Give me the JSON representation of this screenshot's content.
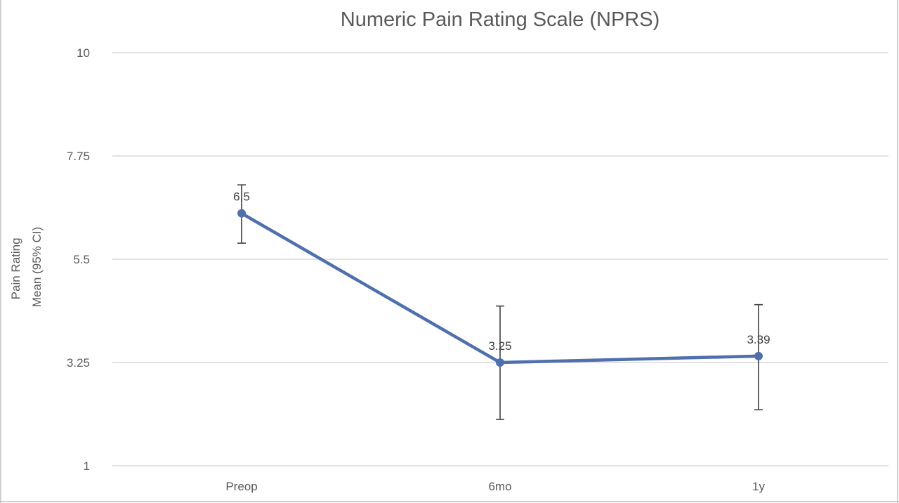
{
  "chart_data": {
    "type": "line",
    "title": "Numeric Pain Rating Scale (NPRS)",
    "ylabel_lines": [
      "Pain Rating",
      "Mean (95% CI)"
    ],
    "categories": [
      "Preop",
      "6mo",
      "1y"
    ],
    "series": [
      {
        "values": [
          6.5,
          3.25,
          3.39
        ],
        "ci_upper": [
          7.12,
          4.48,
          4.51
        ],
        "ci_lower": [
          5.85,
          2.01,
          2.22
        ],
        "data_labels": [
          "6.5",
          "3.25",
          "3.39"
        ],
        "color": "#4f6fad"
      }
    ],
    "yticks": [
      1,
      3.25,
      5.5,
      7.75,
      10
    ],
    "ytick_labels": [
      "1",
      "3.25",
      "5.5",
      "7.75",
      "10"
    ],
    "ylim": [
      1,
      10
    ],
    "grid": true,
    "legend": "none"
  }
}
